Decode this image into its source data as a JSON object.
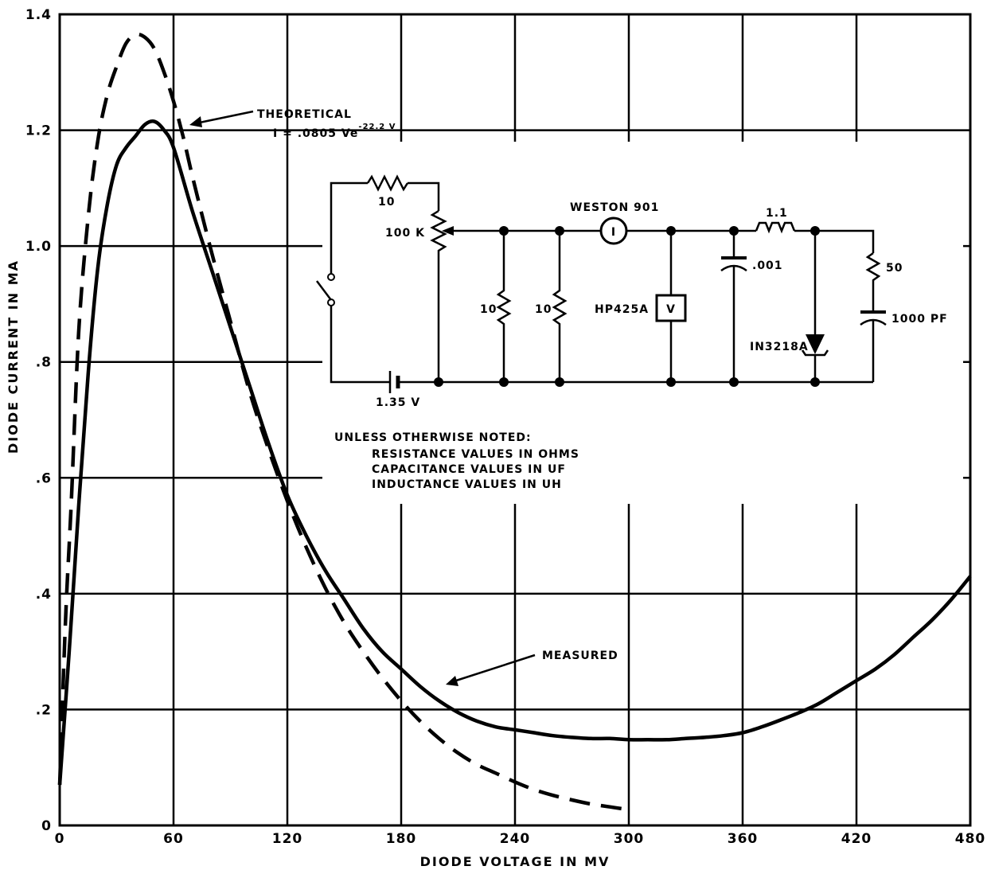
{
  "chart_data": {
    "type": "line",
    "title": "",
    "xlabel": "DIODE VOLTAGE IN MV",
    "ylabel": "DIODE CURRENT IN MA",
    "xlim": [
      0,
      480
    ],
    "ylim": [
      0,
      1.4
    ],
    "grid": true,
    "x_ticks": [
      0,
      60,
      120,
      180,
      240,
      300,
      360,
      420,
      480
    ],
    "x_tick_labels": [
      "0",
      "60",
      "120",
      "180",
      "240",
      "300",
      "360",
      "420",
      "480"
    ],
    "y_ticks": [
      0,
      0.2,
      0.4,
      0.6,
      0.8,
      1.0,
      1.2,
      1.4
    ],
    "y_tick_labels": [
      "0",
      ".2",
      ".4",
      ".6",
      ".8",
      "1.0",
      "1.2",
      "1.4"
    ],
    "series": [
      {
        "name": "MEASURED",
        "style": "solid",
        "x": [
          0,
          5,
          10,
          15,
          20,
          25,
          30,
          35,
          40,
          45,
          50,
          55,
          60,
          70,
          80,
          90,
          100,
          110,
          120,
          130,
          140,
          150,
          160,
          170,
          180,
          190,
          200,
          210,
          220,
          230,
          240,
          250,
          260,
          270,
          280,
          290,
          300,
          310,
          320,
          330,
          340,
          350,
          360,
          370,
          380,
          390,
          400,
          410,
          420,
          430,
          440,
          450,
          460,
          470,
          480
        ],
        "y": [
          0.07,
          0.3,
          0.55,
          0.78,
          0.96,
          1.07,
          1.14,
          1.17,
          1.19,
          1.21,
          1.215,
          1.2,
          1.17,
          1.06,
          0.96,
          0.86,
          0.76,
          0.66,
          0.57,
          0.5,
          0.44,
          0.39,
          0.34,
          0.3,
          0.27,
          0.24,
          0.215,
          0.195,
          0.18,
          0.17,
          0.165,
          0.16,
          0.155,
          0.152,
          0.15,
          0.15,
          0.148,
          0.148,
          0.148,
          0.15,
          0.152,
          0.155,
          0.16,
          0.17,
          0.182,
          0.195,
          0.21,
          0.23,
          0.25,
          0.27,
          0.295,
          0.325,
          0.355,
          0.39,
          0.43
        ]
      },
      {
        "name": "THEORETICAL",
        "style": "dashed",
        "x": [
          0,
          3,
          6,
          10,
          15,
          20,
          25,
          30,
          35,
          40,
          45,
          50,
          55,
          60,
          65,
          70,
          80,
          90,
          100,
          110,
          120,
          130,
          140,
          150,
          160,
          170,
          180,
          190,
          200,
          210,
          220,
          230,
          240,
          250,
          260,
          270,
          280,
          290,
          300
        ],
        "y": [
          0.07,
          0.35,
          0.55,
          0.85,
          1.05,
          1.18,
          1.26,
          1.31,
          1.35,
          1.365,
          1.36,
          1.34,
          1.3,
          1.25,
          1.19,
          1.12,
          0.99,
          0.87,
          0.75,
          0.65,
          0.56,
          0.48,
          0.41,
          0.35,
          0.3,
          0.255,
          0.215,
          0.18,
          0.15,
          0.125,
          0.105,
          0.09,
          0.075,
          0.062,
          0.052,
          0.044,
          0.037,
          0.032,
          0.027
        ]
      }
    ],
    "annotations": {
      "theoretical": "THEORETICAL",
      "formula_main": "I = .0805  Ve",
      "formula_exp": "-22.2 V",
      "measured": "MEASURED"
    }
  },
  "circuit": {
    "r_top": "10",
    "pot": "100 K",
    "r_left": "10",
    "r_right": "10",
    "ammeter_symbol": "I",
    "ammeter_label": "WESTON 901",
    "voltmeter_symbol": "V",
    "voltmeter_label": "HP425A",
    "capacitor": ".001",
    "inductor": "1.1",
    "diode": "IN3218A",
    "r_series": "50",
    "c_series": "1000 PF",
    "battery": "1.35 V"
  },
  "notes": {
    "heading": "UNLESS OTHERWISE NOTED:",
    "lines": [
      "RESISTANCE VALUES IN OHMS",
      "CAPACITANCE VALUES IN UF",
      "INDUCTANCE VALUES IN UH"
    ]
  }
}
